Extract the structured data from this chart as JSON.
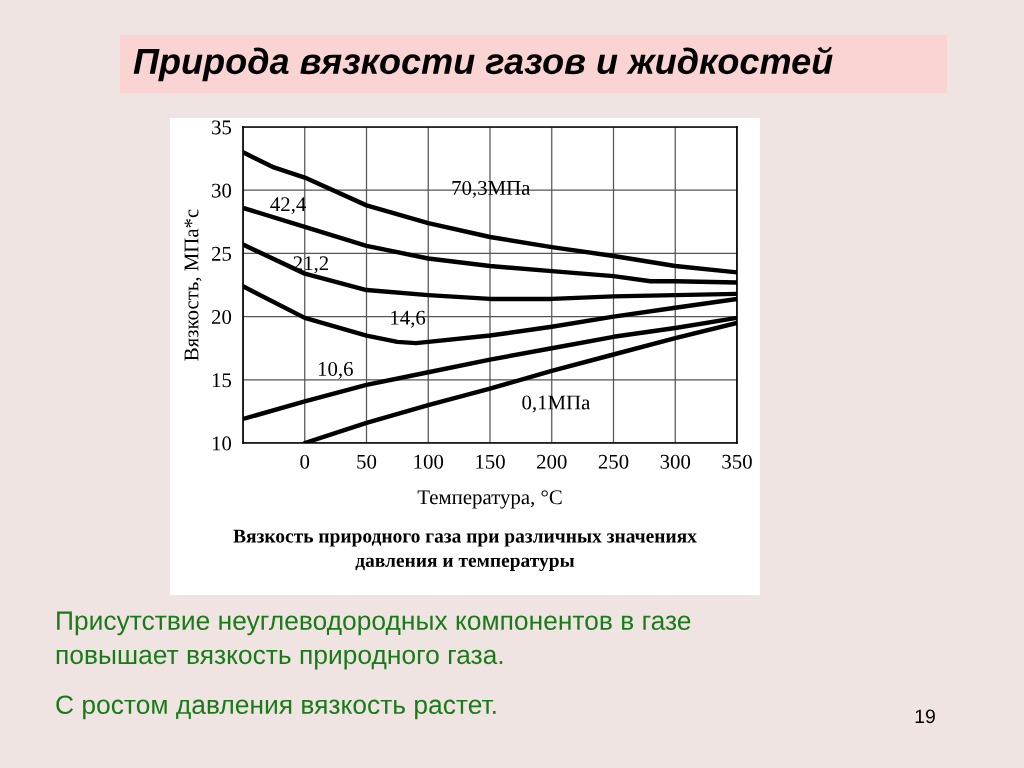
{
  "chart_data": {
    "type": "line",
    "title": "Природа вязкости газов и жидкостей",
    "xlabel": "Температура, °C",
    "ylabel": "Вязкость, МПа*с",
    "xlim": [
      -50,
      350
    ],
    "ylim": [
      10,
      35
    ],
    "xticks": [
      {
        "value": -50,
        "label": null
      },
      0,
      50,
      100,
      150,
      200,
      250,
      300,
      350
    ],
    "yticks": [
      10,
      15,
      20,
      25,
      30,
      35
    ],
    "grid": true,
    "legend": false,
    "marker": "none",
    "line_style": "solid",
    "tick_labels": [
      "x",
      "y"
    ],
    "series": [
      {
        "name": "70,3МПа",
        "color": "#000000",
        "x": [
          -50,
          -25,
          0,
          50,
          100,
          150,
          200,
          250,
          300,
          350
        ],
        "values": [
          33,
          31.8,
          31,
          28.8,
          27.4,
          26.3,
          25.5,
          24.8,
          24.0,
          23.5
        ]
      },
      {
        "name": "42,4",
        "color": "#000000",
        "x": [
          -50,
          0,
          50,
          100,
          150,
          200,
          250,
          280,
          300,
          350
        ],
        "values": [
          28.6,
          27.1,
          25.6,
          24.6,
          24.0,
          23.6,
          23.2,
          22.8,
          22.8,
          22.7
        ]
      },
      {
        "name": "21,2",
        "color": "#000000",
        "x": [
          -50,
          0,
          50,
          100,
          150,
          200,
          250,
          300,
          350
        ],
        "values": [
          25.7,
          23.4,
          22.1,
          21.7,
          21.4,
          21.4,
          21.6,
          21.7,
          21.8
        ]
      },
      {
        "name": "14,6",
        "color": "#000000",
        "x": [
          -50,
          0,
          50,
          75,
          90,
          100,
          150,
          200,
          250,
          300,
          350
        ],
        "values": [
          22.4,
          19.9,
          18.5,
          18.0,
          17.9,
          18.0,
          18.5,
          19.2,
          20.0,
          20.7,
          21.4
        ]
      },
      {
        "name": "10,6",
        "color": "#000000",
        "x": [
          -50,
          0,
          50,
          100,
          150,
          200,
          250,
          300,
          350
        ],
        "values": [
          11.9,
          13.3,
          14.6,
          15.6,
          16.6,
          17.5,
          18.4,
          19.1,
          19.9
        ]
      },
      {
        "name": "0,1МПа",
        "color": "#000000",
        "x": [
          0,
          50,
          100,
          150,
          200,
          250,
          300,
          350
        ],
        "values": [
          10.0,
          11.6,
          13.0,
          14.3,
          15.7,
          17.0,
          18.3,
          19.5
        ]
      }
    ],
    "annotations": [
      "Вязкость природного газа при различных значениях\nдавления и температуры",
      "Присутствие неуглеводородных компонентов в газе\nповышает вязкость природного газа.",
      "С ростом давления вязкость растет.",
      "19"
    ]
  }
}
